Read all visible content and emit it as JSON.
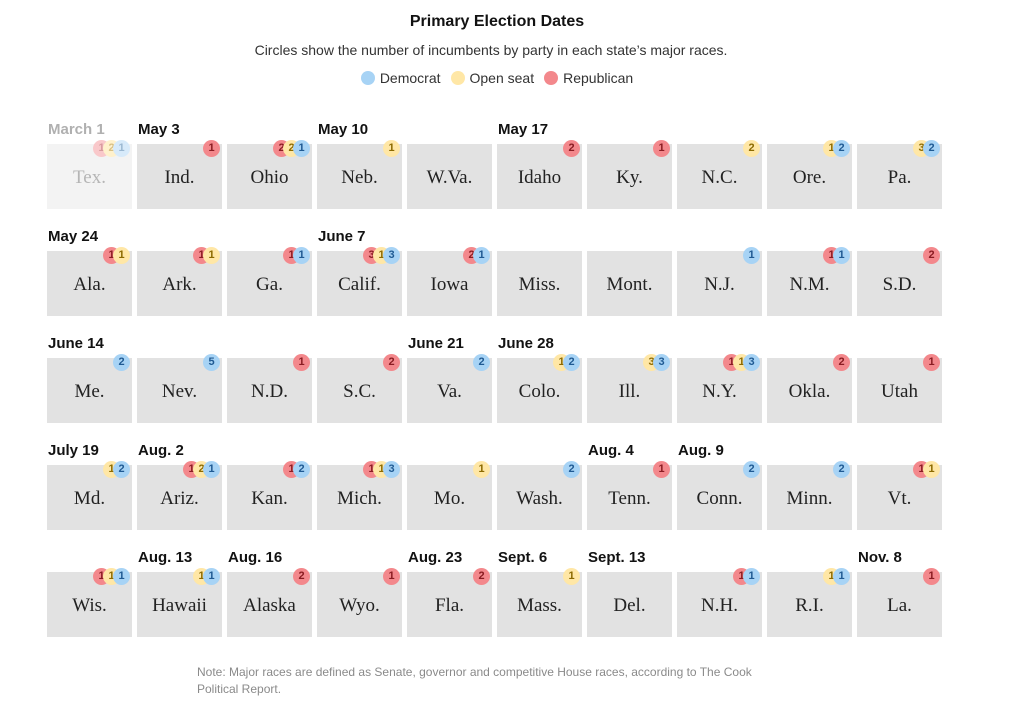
{
  "title": "Primary Election Dates",
  "subtitle": "Circles show the number of incumbents by party in each state’s major races.",
  "legend": [
    {
      "label": "Democrat",
      "color": "#a7d3f5"
    },
    {
      "label": "Open seat",
      "color": "#ffe7a6"
    },
    {
      "label": "Republican",
      "color": "#f3888c"
    }
  ],
  "note": "Note: Major races are defined as Senate, governor and competitive House races, according to The Cook Political Report.",
  "colors": {
    "democrat": "#a7d3f5",
    "open": "#ffe7a6",
    "republican": "#f3888c",
    "box": "#e2e2e2"
  },
  "chart_data": {
    "type": "table",
    "title": "Primary Election Dates",
    "series": [
      "Democrat",
      "Open seat",
      "Republican"
    ],
    "states": [
      {
        "state": "Tex.",
        "date": "March 1",
        "past": true,
        "rep": 1,
        "open": 2,
        "dem": 1
      },
      {
        "state": "Ind.",
        "date": "May 3",
        "rep": 1,
        "open": 0,
        "dem": 0
      },
      {
        "state": "Ohio",
        "date": "",
        "rep": 2,
        "open": 2,
        "dem": 1
      },
      {
        "state": "Neb.",
        "date": "May 10",
        "rep": 0,
        "open": 1,
        "dem": 0
      },
      {
        "state": "W.Va.",
        "date": "",
        "rep": 0,
        "open": 0,
        "dem": 0
      },
      {
        "state": "Idaho",
        "date": "May 17",
        "rep": 2,
        "open": 0,
        "dem": 0
      },
      {
        "state": "Ky.",
        "date": "",
        "rep": 1,
        "open": 0,
        "dem": 0
      },
      {
        "state": "N.C.",
        "date": "",
        "rep": 0,
        "open": 2,
        "dem": 0
      },
      {
        "state": "Ore.",
        "date": "",
        "rep": 0,
        "open": 1,
        "dem": 2
      },
      {
        "state": "Pa.",
        "date": "",
        "rep": 0,
        "open": 3,
        "dem": 2
      },
      {
        "state": "Ala.",
        "date": "May 24",
        "rep": 1,
        "open": 1,
        "dem": 0
      },
      {
        "state": "Ark.",
        "date": "",
        "rep": 1,
        "open": 1,
        "dem": 0
      },
      {
        "state": "Ga.",
        "date": "",
        "rep": 1,
        "open": 0,
        "dem": 1
      },
      {
        "state": "Calif.",
        "date": "June 7",
        "rep": 3,
        "open": 1,
        "dem": 3
      },
      {
        "state": "Iowa",
        "date": "",
        "rep": 2,
        "open": 0,
        "dem": 1
      },
      {
        "state": "Miss.",
        "date": "",
        "rep": 0,
        "open": 0,
        "dem": 0
      },
      {
        "state": "Mont.",
        "date": "",
        "rep": 0,
        "open": 0,
        "dem": 0
      },
      {
        "state": "N.J.",
        "date": "",
        "rep": 0,
        "open": 0,
        "dem": 1
      },
      {
        "state": "N.M.",
        "date": "",
        "rep": 1,
        "open": 0,
        "dem": 1
      },
      {
        "state": "S.D.",
        "date": "",
        "rep": 2,
        "open": 0,
        "dem": 0
      },
      {
        "state": "Me.",
        "date": "June 14",
        "rep": 0,
        "open": 0,
        "dem": 2
      },
      {
        "state": "Nev.",
        "date": "",
        "rep": 0,
        "open": 0,
        "dem": 5
      },
      {
        "state": "N.D.",
        "date": "",
        "rep": 1,
        "open": 0,
        "dem": 0
      },
      {
        "state": "S.C.",
        "date": "",
        "rep": 2,
        "open": 0,
        "dem": 0
      },
      {
        "state": "Va.",
        "date": "June 21",
        "rep": 0,
        "open": 0,
        "dem": 2
      },
      {
        "state": "Colo.",
        "date": "June 28",
        "rep": 0,
        "open": 1,
        "dem": 2
      },
      {
        "state": "Ill.",
        "date": "",
        "rep": 0,
        "open": 3,
        "dem": 3
      },
      {
        "state": "N.Y.",
        "date": "",
        "rep": 1,
        "open": 1,
        "dem": 3
      },
      {
        "state": "Okla.",
        "date": "",
        "rep": 2,
        "open": 0,
        "dem": 0
      },
      {
        "state": "Utah",
        "date": "",
        "rep": 1,
        "open": 0,
        "dem": 0
      },
      {
        "state": "Md.",
        "date": "July 19",
        "rep": 0,
        "open": 1,
        "dem": 2
      },
      {
        "state": "Ariz.",
        "date": "Aug. 2",
        "rep": 1,
        "open": 2,
        "dem": 1
      },
      {
        "state": "Kan.",
        "date": "",
        "rep": 1,
        "open": 0,
        "dem": 2
      },
      {
        "state": "Mich.",
        "date": "",
        "rep": 1,
        "open": 1,
        "dem": 3
      },
      {
        "state": "Mo.",
        "date": "",
        "rep": 0,
        "open": 1,
        "dem": 0
      },
      {
        "state": "Wash.",
        "date": "",
        "rep": 0,
        "open": 0,
        "dem": 2
      },
      {
        "state": "Tenn.",
        "date": "Aug. 4",
        "rep": 1,
        "open": 0,
        "dem": 0
      },
      {
        "state": "Conn.",
        "date": "Aug. 9",
        "rep": 0,
        "open": 0,
        "dem": 2
      },
      {
        "state": "Minn.",
        "date": "",
        "rep": 0,
        "open": 0,
        "dem": 2
      },
      {
        "state": "Vt.",
        "date": "",
        "rep": 1,
        "open": 1,
        "dem": 0
      },
      {
        "state": "Wis.",
        "date": "",
        "rep": 1,
        "open": 1,
        "dem": 1
      },
      {
        "state": "Hawaii",
        "date": "Aug. 13",
        "rep": 0,
        "open": 1,
        "dem": 1
      },
      {
        "state": "Alaska",
        "date": "Aug. 16",
        "rep": 2,
        "open": 0,
        "dem": 0
      },
      {
        "state": "Wyo.",
        "date": "",
        "rep": 1,
        "open": 0,
        "dem": 0
      },
      {
        "state": "Fla.",
        "date": "Aug. 23",
        "rep": 2,
        "open": 0,
        "dem": 0
      },
      {
        "state": "Mass.",
        "date": "Sept. 6",
        "rep": 0,
        "open": 1,
        "dem": 0
      },
      {
        "state": "Del.",
        "date": "Sept. 13",
        "rep": 0,
        "open": 0,
        "dem": 0
      },
      {
        "state": "N.H.",
        "date": "",
        "rep": 1,
        "open": 0,
        "dem": 1
      },
      {
        "state": "R.I.",
        "date": "",
        "rep": 0,
        "open": 1,
        "dem": 1
      },
      {
        "state": "La.",
        "date": "Nov. 8",
        "rep": 1,
        "open": 0,
        "dem": 0
      }
    ]
  }
}
